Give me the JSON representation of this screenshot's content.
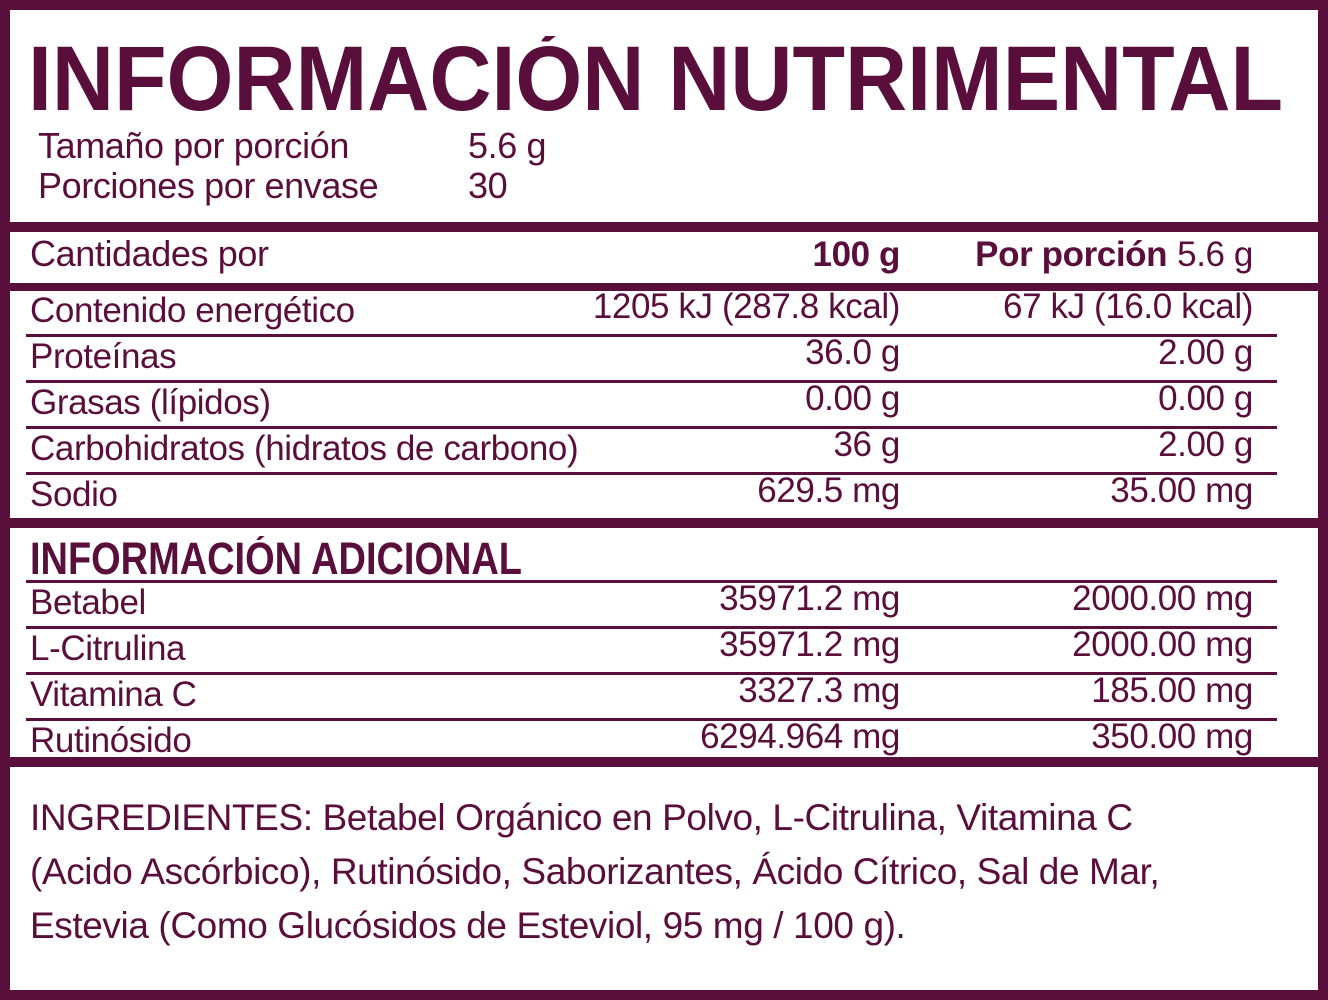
{
  "colors": {
    "plum": "#5A0E3C",
    "background": "#FFFFFF"
  },
  "header": {
    "title": "INFORMACIÓN NUTRIMENTAL",
    "serving_size_label": "Tamaño por porción",
    "serving_size_value": "5.6 g",
    "servings_label": "Porciones por envase",
    "servings_value": "30"
  },
  "table": {
    "amounts_label": "Cantidades por",
    "col_100g": "100 g",
    "col_portion_label": "Por porción",
    "col_portion_value": "5.6 g",
    "rows": [
      {
        "label": "Contenido energético",
        "per100": "1205 kJ (287.8 kcal)",
        "portion": "67 kJ (16.0 kcal)"
      },
      {
        "label": "Proteínas",
        "per100": "36.0 g",
        "portion": "2.00 g"
      },
      {
        "label": "Grasas (lípidos)",
        "per100": "0.00 g",
        "portion": "0.00 g"
      },
      {
        "label": "Carbohidratos (hidratos de carbono)",
        "per100": "36 g",
        "portion": "2.00 g"
      },
      {
        "label": "Sodio",
        "per100": "629.5 mg",
        "portion": "35.00 mg"
      }
    ]
  },
  "additional": {
    "title": "INFORMACIÓN ADICIONAL",
    "rows": [
      {
        "label": "Betabel",
        "per100": "35971.2 mg",
        "portion": "2000.00 mg"
      },
      {
        "label": "L-Citrulina",
        "per100": "35971.2 mg",
        "portion": "2000.00 mg"
      },
      {
        "label": "Vitamina C",
        "per100": "3327.3 mg",
        "portion": "185.00 mg"
      },
      {
        "label": "Rutinósido",
        "per100": "6294.964 mg",
        "portion": "350.00 mg"
      }
    ]
  },
  "ingredients": {
    "lines": [
      "INGREDIENTES: Betabel Orgánico en Polvo, L-Citrulina, Vitamina C",
      "(Acido Ascórbico), Rutinósido, Saborizantes, Ácido Cítrico, Sal de Mar,",
      "Estevia (Como Glucósidos de Esteviol, 95 mg / 100 g)."
    ]
  }
}
